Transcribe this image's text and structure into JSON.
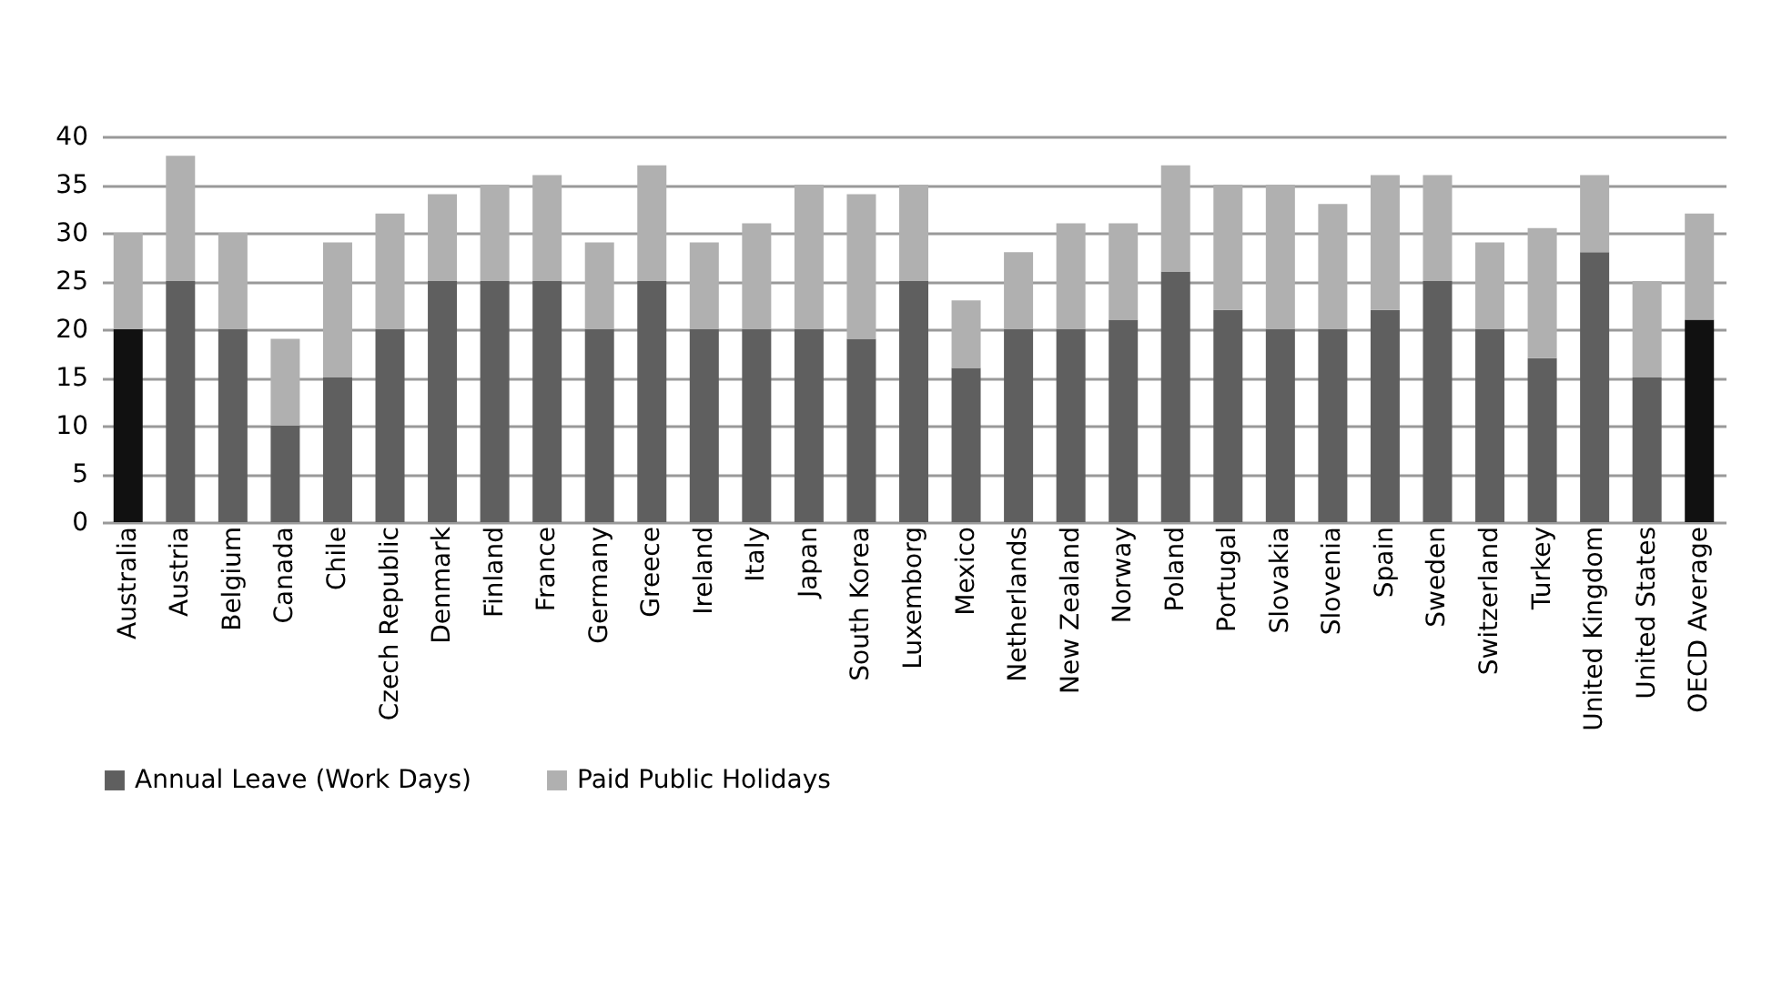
{
  "chart_data": {
    "type": "bar",
    "stacked": true,
    "categories": [
      "Australia",
      "Austria",
      "Belgium",
      "Canada",
      "Chile",
      "Czech Republic",
      "Denmark",
      "Finland",
      "France",
      "Germany",
      "Greece",
      "Ireland",
      "Italy",
      "Japan",
      "South Korea",
      "Luxemborg",
      "Mexico",
      "Netherlands",
      "New Zealand",
      "Norway",
      "Poland",
      "Portugal",
      "Slovakia",
      "Slovenia",
      "Spain",
      "Sweden",
      "Switzerland",
      "Turkey",
      "United Kingdom",
      "United States",
      "OECD Average"
    ],
    "series": [
      {
        "name": "Annual Leave (Work Days)",
        "color": "#5f5f5f",
        "colors": [
          "#111111",
          "#5f5f5f",
          "#5f5f5f",
          "#5f5f5f",
          "#5f5f5f",
          "#5f5f5f",
          "#5f5f5f",
          "#5f5f5f",
          "#5f5f5f",
          "#5f5f5f",
          "#5f5f5f",
          "#5f5f5f",
          "#5f5f5f",
          "#5f5f5f",
          "#5f5f5f",
          "#5f5f5f",
          "#5f5f5f",
          "#5f5f5f",
          "#5f5f5f",
          "#5f5f5f",
          "#5f5f5f",
          "#5f5f5f",
          "#5f5f5f",
          "#5f5f5f",
          "#5f5f5f",
          "#5f5f5f",
          "#5f5f5f",
          "#5f5f5f",
          "#5f5f5f",
          "#5f5f5f",
          "#111111"
        ],
        "values": [
          20,
          25,
          20,
          10,
          15,
          20,
          25,
          25,
          25,
          20,
          25,
          20,
          20,
          20,
          19,
          25,
          16,
          20,
          20,
          21,
          26,
          22,
          20,
          20,
          22,
          25,
          20,
          17,
          28,
          15,
          21
        ]
      },
      {
        "name": "Paid Public Holidays",
        "color": "#b0b0b0",
        "values": [
          10,
          13,
          10,
          9,
          14,
          12,
          9,
          10,
          11,
          9,
          12,
          9,
          11,
          15,
          15,
          10,
          7,
          8,
          11,
          10,
          11,
          13,
          15,
          13,
          14,
          11,
          9,
          13.5,
          8,
          10,
          11
        ]
      }
    ],
    "ylim": [
      0,
      40
    ],
    "yticks": [
      0,
      5,
      10,
      15,
      20,
      25,
      30,
      35,
      40
    ],
    "grid": "y",
    "legend": "bottom"
  }
}
